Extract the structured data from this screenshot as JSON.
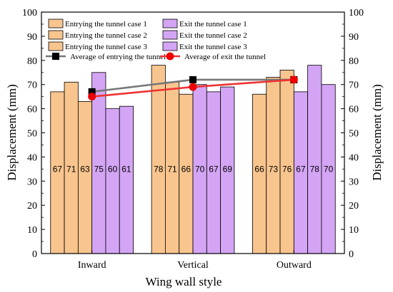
{
  "chart_data": {
    "type": "bar",
    "categories": [
      "Inward",
      "Vertical",
      "Outward"
    ],
    "series": [
      {
        "name": "Entrying the tunnel case 1",
        "values": [
          67,
          78,
          66
        ],
        "color": "#f9c58e"
      },
      {
        "name": "Entrying the tunnel case 2",
        "values": [
          71,
          71,
          73
        ],
        "color": "#f9c58e"
      },
      {
        "name": "Entrying the tunnel case 3",
        "values": [
          63,
          66,
          76
        ],
        "color": "#f9c58e"
      },
      {
        "name": "Exit the tunnel case 1",
        "values": [
          75,
          70,
          67
        ],
        "color": "#d4a5f5"
      },
      {
        "name": "Exit the tunnel case 2",
        "values": [
          60,
          67,
          78
        ],
        "color": "#d4a5f5"
      },
      {
        "name": "Exit the tunnel case 3",
        "values": [
          61,
          69,
          70
        ],
        "color": "#d4a5f5"
      }
    ],
    "lines": [
      {
        "name": "Average of entrying the tunnel",
        "values": [
          67,
          72,
          72
        ],
        "color": "#777777",
        "marker": "square",
        "marker_color": "#000000"
      },
      {
        "name": "Average of exit the tunnel",
        "values": [
          65,
          69,
          72
        ],
        "color": "#ee3333",
        "marker": "circle",
        "marker_color": "#ee0000"
      }
    ],
    "xlabel": "Wing wall style",
    "ylabel": "Displacement (mm)",
    "ylabel_right": "Displacement (mm)",
    "ylim": [
      0,
      100
    ],
    "yticks": [
      0,
      10,
      20,
      30,
      40,
      50,
      60,
      70,
      80,
      90,
      100
    ],
    "grid": false,
    "legend_position": "top",
    "data_labels": true
  }
}
